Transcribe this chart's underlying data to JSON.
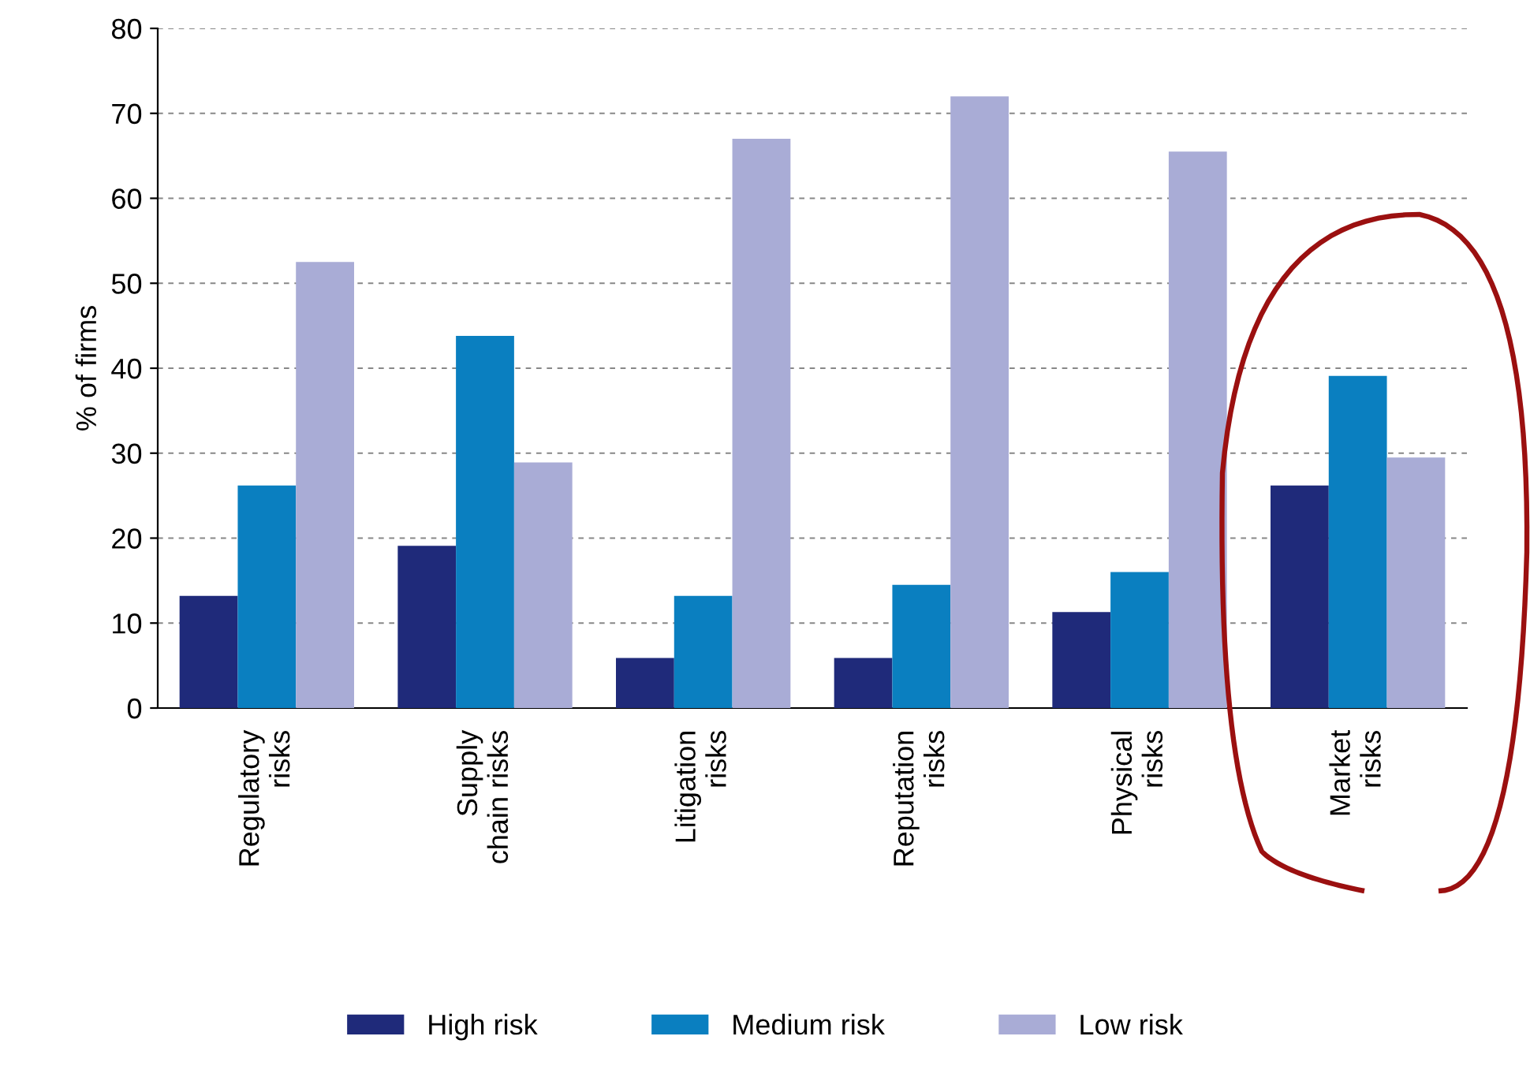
{
  "chart_data": {
    "type": "bar",
    "ylabel": "% of firms",
    "categories": [
      "Regulatory\nrisks",
      "Supply\nchain risks",
      "Litigation\nrisks",
      "Reputation\nrisks",
      "Physical\nrisks",
      "Market\nrisks"
    ],
    "series": [
      {
        "name": "High risk",
        "color": "#1f2a7a",
        "values": [
          13.2,
          19.1,
          5.9,
          5.9,
          11.3,
          26.2
        ]
      },
      {
        "name": "Medium risk",
        "color": "#0a7fc0",
        "values": [
          26.2,
          43.8,
          13.2,
          14.5,
          16,
          39.1
        ]
      },
      {
        "name": "Low risk",
        "color": "#a9acd6",
        "values": [
          52.5,
          28.9,
          67,
          72,
          65.5,
          29.5
        ]
      }
    ],
    "ylim": [
      0,
      80
    ],
    "yticks": [
      0,
      10,
      20,
      30,
      40,
      50,
      60,
      70,
      80
    ],
    "grid": "y",
    "legend": "bottom"
  }
}
